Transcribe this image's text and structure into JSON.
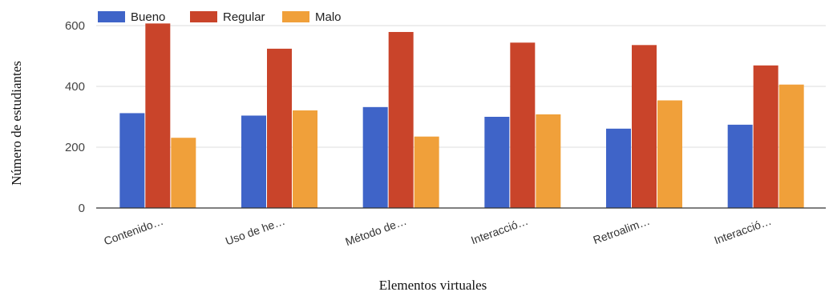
{
  "chart_data": {
    "type": "bar",
    "title": "",
    "xlabel": "Elementos virtuales",
    "ylabel": "Número de estudiantes",
    "categories": [
      "Contenido…",
      "Uso de he…",
      "Método de…",
      "Interacció…",
      "Retroalim…",
      "Interacció…"
    ],
    "series": [
      {
        "name": "Bueno",
        "color": "#3f64c8",
        "values": [
          312,
          304,
          332,
          300,
          261,
          274
        ]
      },
      {
        "name": "Regular",
        "color": "#c9442a",
        "values": [
          607,
          524,
          579,
          544,
          536,
          469
        ]
      },
      {
        "name": "Malo",
        "color": "#f0a03a",
        "values": [
          231,
          321,
          235,
          308,
          354,
          406
        ]
      }
    ],
    "ylim": [
      0,
      600
    ],
    "yticks": [
      "0",
      "200",
      "400",
      "600"
    ],
    "grid": true,
    "legend_position": "top-left"
  }
}
